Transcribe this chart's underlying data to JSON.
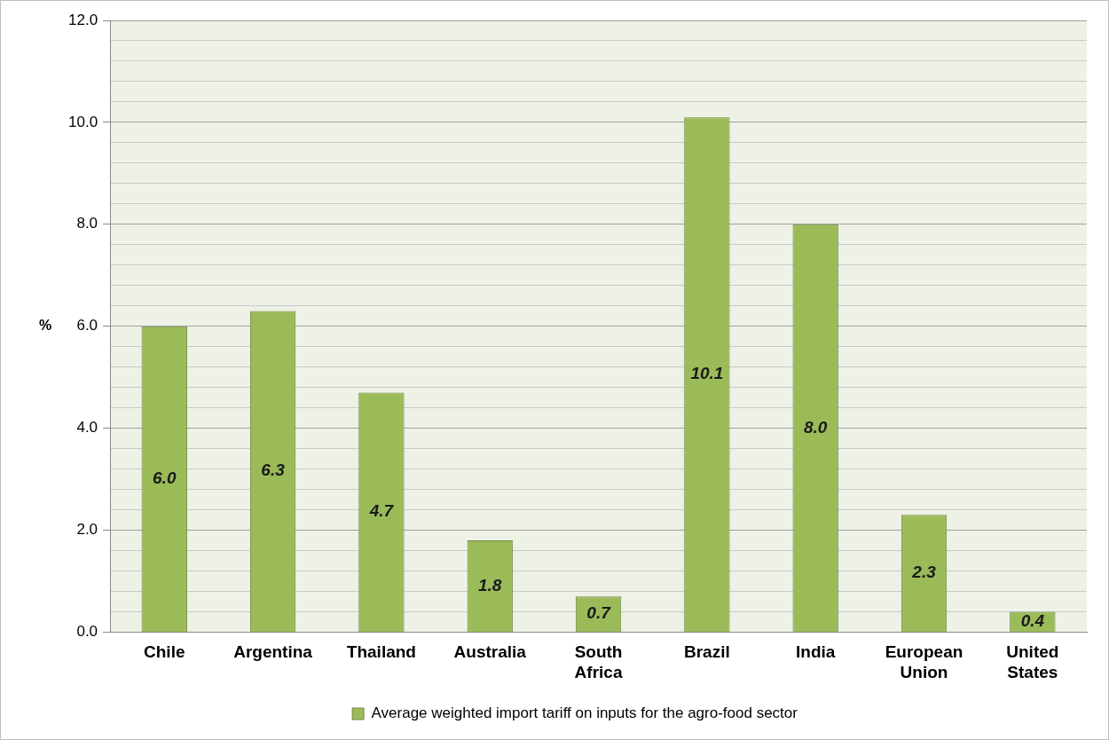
{
  "chart_data": {
    "type": "bar",
    "ylabel": "%",
    "categories": [
      "Chile",
      "Argentina",
      "Thailand",
      "Australia",
      "South Africa",
      "Brazil",
      "India",
      "European Union",
      "United States"
    ],
    "series": [
      {
        "name": "Average weighted import tariff on inputs for the agro-food sector",
        "color": "#9bbb59",
        "values": [
          6.0,
          6.3,
          4.7,
          1.8,
          0.7,
          10.1,
          8.0,
          2.3,
          0.4
        ],
        "value_labels": [
          "6.0",
          "6.3",
          "4.7",
          "1.8",
          "0.7",
          "10.1",
          "8.0",
          "2.3",
          "0.4"
        ]
      }
    ],
    "ylim": [
      0,
      12
    ],
    "yticks": [
      {
        "value": 0,
        "label": "0.0"
      },
      {
        "value": 0.4,
        "label": null
      },
      {
        "value": 0.8,
        "label": null
      },
      {
        "value": 1.2,
        "label": null
      },
      {
        "value": 1.6,
        "label": null
      },
      {
        "value": 2,
        "label": "2.0"
      },
      {
        "value": 2.4,
        "label": null
      },
      {
        "value": 2.8,
        "label": null
      },
      {
        "value": 3.2,
        "label": null
      },
      {
        "value": 3.6,
        "label": null
      },
      {
        "value": 4,
        "label": "4.0"
      },
      {
        "value": 4.4,
        "label": null
      },
      {
        "value": 4.8,
        "label": null
      },
      {
        "value": 5.2,
        "label": null
      },
      {
        "value": 5.6,
        "label": null
      },
      {
        "value": 6,
        "label": "6.0"
      },
      {
        "value": 6.4,
        "label": null
      },
      {
        "value": 6.8,
        "label": null
      },
      {
        "value": 7.2,
        "label": null
      },
      {
        "value": 7.6,
        "label": null
      },
      {
        "value": 8,
        "label": "8.0"
      },
      {
        "value": 8.4,
        "label": null
      },
      {
        "value": 8.8,
        "label": null
      },
      {
        "value": 9.2,
        "label": null
      },
      {
        "value": 9.6,
        "label": null
      },
      {
        "value": 10,
        "label": "10.0"
      },
      {
        "value": 10.4,
        "label": null
      },
      {
        "value": 10.8,
        "label": null
      },
      {
        "value": 11.2,
        "label": null
      },
      {
        "value": 11.6,
        "label": null
      },
      {
        "value": 12,
        "label": "12.0"
      }
    ],
    "grid": "y",
    "legend": "bottom"
  }
}
